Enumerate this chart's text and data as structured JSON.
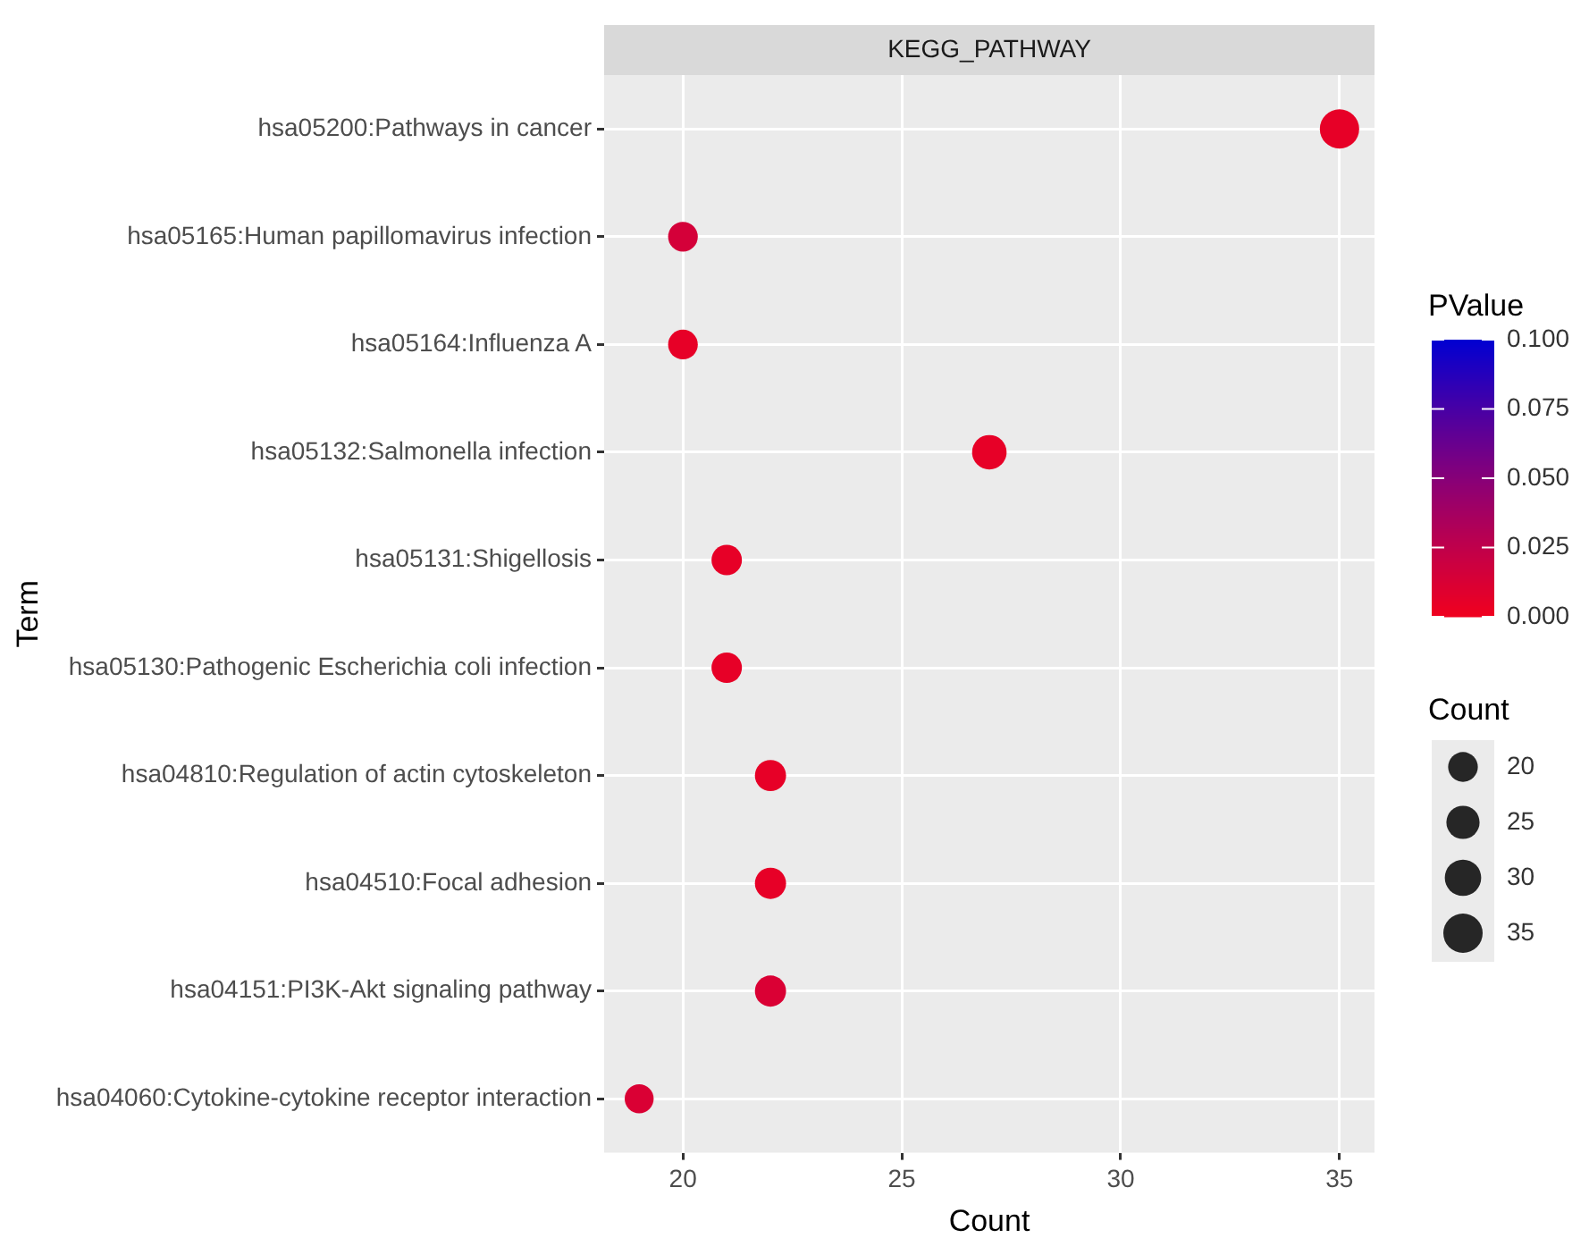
{
  "chart_data": {
    "type": "bubble",
    "title": "KEGG_PATHWAY",
    "xlabel": "Count",
    "ylabel": "Term",
    "clabel": "PValue",
    "legend_title": "Count",
    "orientation": "horizontal",
    "categories": [
      "hsa05200:Pathways in cancer",
      "hsa05165:Human papillomavirus infection",
      "hsa05164:Influenza A",
      "hsa05132:Salmonella infection",
      "hsa05131:Shigellosis",
      "hsa05130:Pathogenic Escherichia coli infection",
      "hsa04810:Regulation of actin cytoskeleton",
      "hsa04510:Focal adhesion",
      "hsa04151:PI3K-Akt signaling pathway",
      "hsa04060:Cytokine-cytokine receptor interaction"
    ],
    "values": [
      35,
      20,
      20,
      27,
      21,
      21,
      22,
      22,
      22,
      19
    ],
    "sizes": [
      35,
      20,
      20,
      27,
      21,
      21,
      22,
      22,
      22,
      19
    ],
    "size_legend": [
      20,
      25,
      30,
      35
    ],
    "cvalues": [
      0.005,
      0.015,
      0.005,
      0.005,
      0.005,
      0.005,
      0.005,
      0.005,
      0.012,
      0.012
    ],
    "clim": [
      0,
      0.1
    ],
    "cticks": [
      {
        "value": 0,
        "label": "0.000"
      },
      {
        "value": 0.025,
        "label": "0.025"
      },
      {
        "value": 0.05,
        "label": "0.050"
      },
      {
        "value": 0.075,
        "label": "0.075"
      },
      {
        "value": 0.1,
        "label": "0.100"
      }
    ],
    "xlim": [
      18.2,
      35.8
    ],
    "xticks": [
      20,
      25,
      30,
      35
    ],
    "grid": true
  }
}
